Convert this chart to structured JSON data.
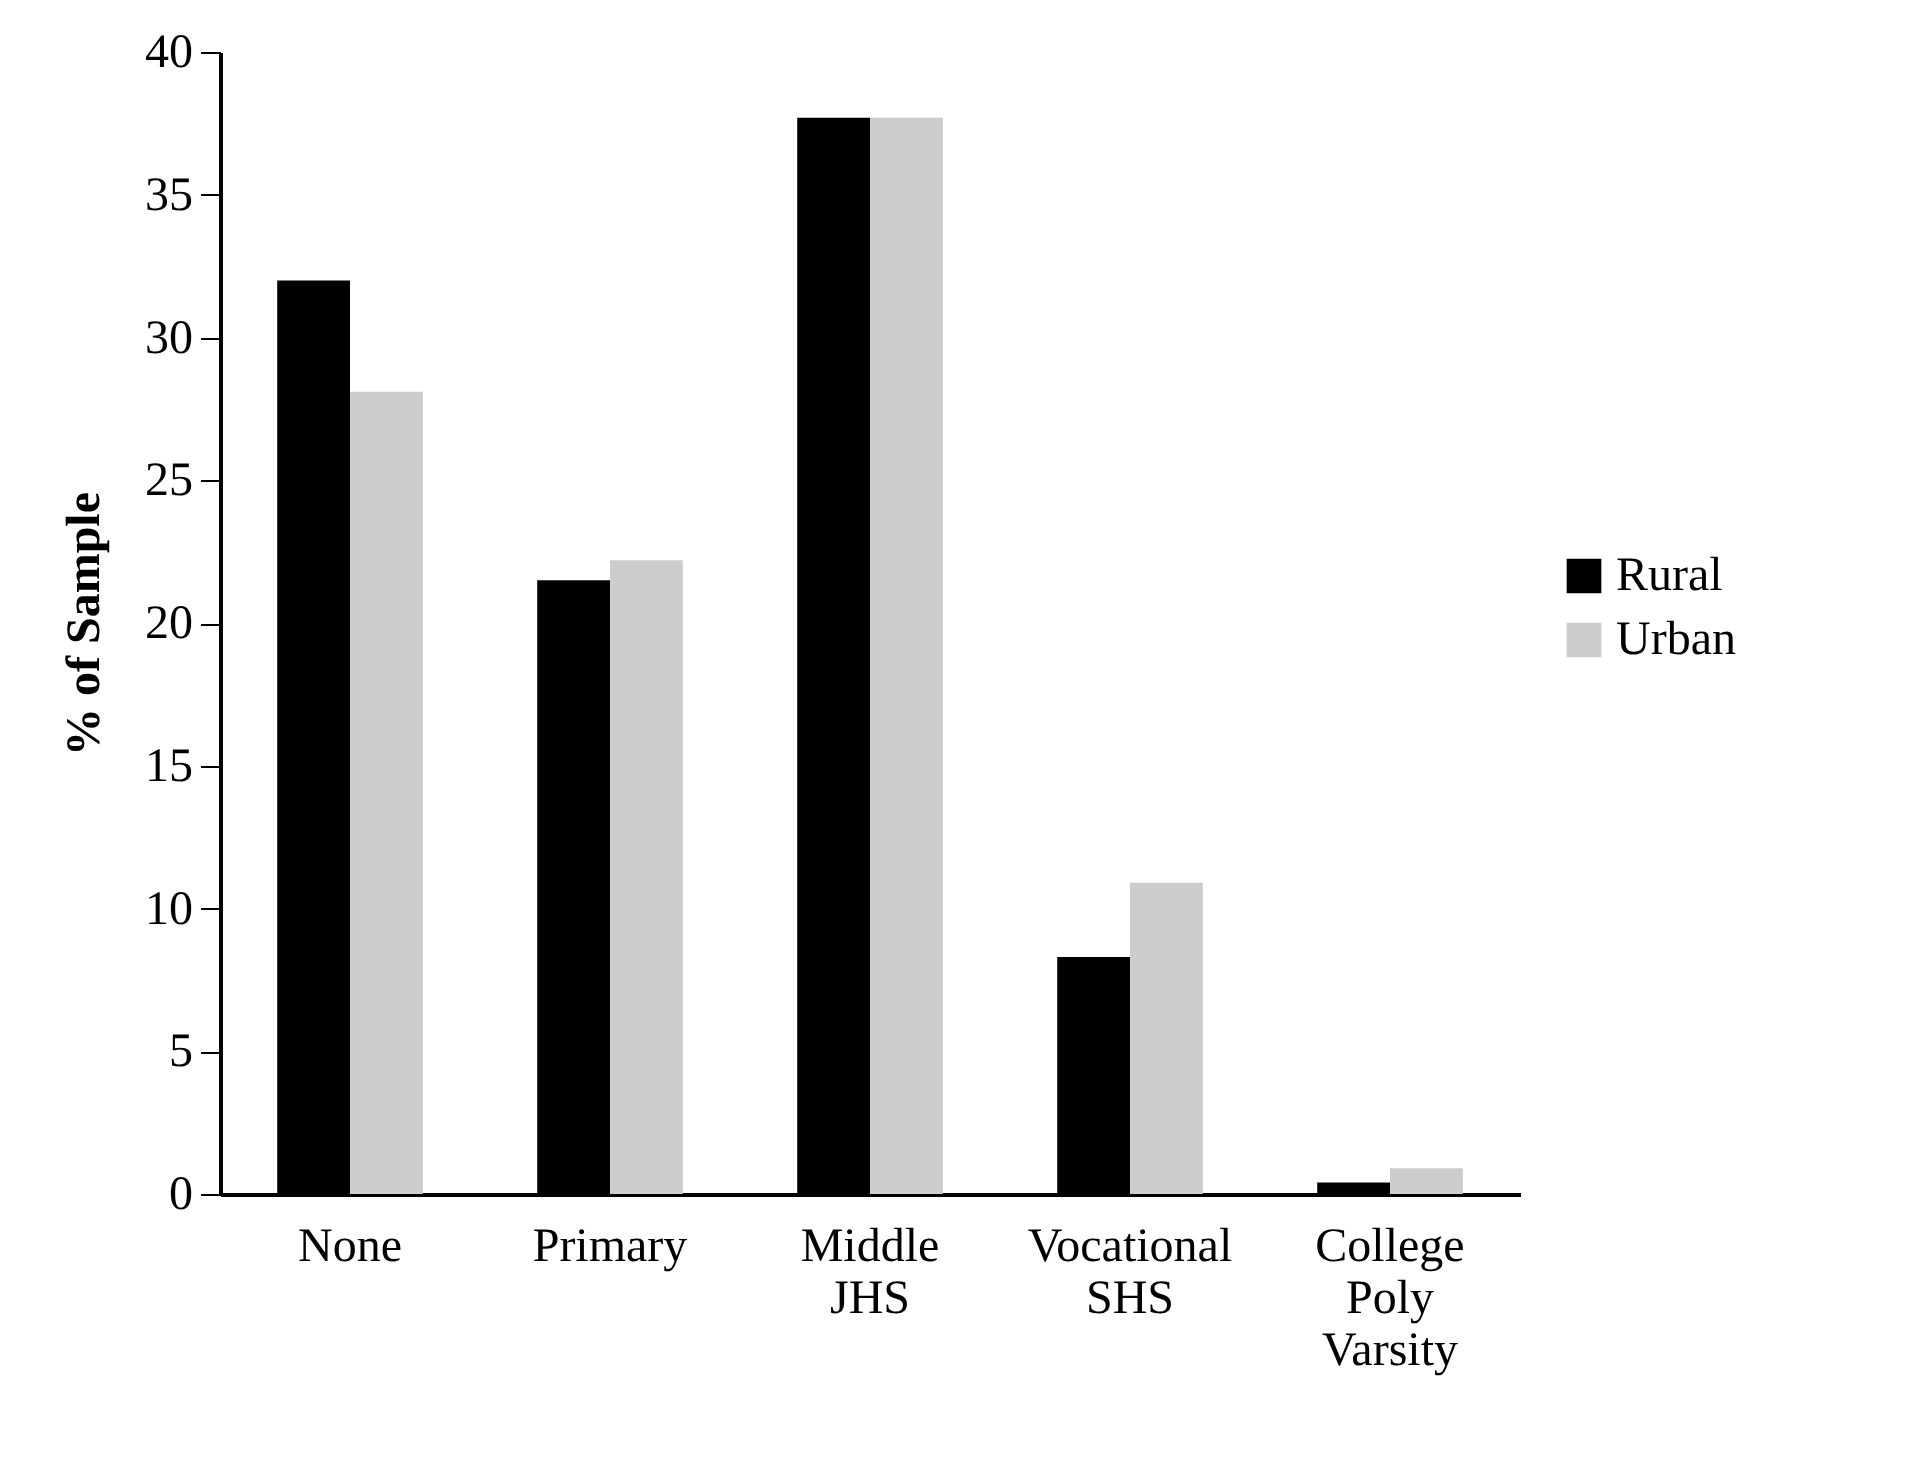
{
  "chart_data": {
    "type": "bar",
    "ylabel": "% of Sample",
    "categories": [
      "None",
      "Primary",
      "Middle\nJHS",
      "Vocational\nSHS",
      "College\nPoly\nVarsity"
    ],
    "series": [
      {
        "name": "Rural",
        "color": "#000000",
        "values": [
          32,
          21.5,
          37.7,
          8.3,
          0.4
        ]
      },
      {
        "name": "Urban",
        "color": "#cccccc",
        "values": [
          28.1,
          22.2,
          37.7,
          10.9,
          0.9
        ]
      }
    ],
    "ylim": [
      0,
      40
    ],
    "yticks": [
      0,
      5,
      10,
      15,
      20,
      25,
      30,
      35,
      40
    ],
    "grid": false,
    "legend": "right"
  }
}
